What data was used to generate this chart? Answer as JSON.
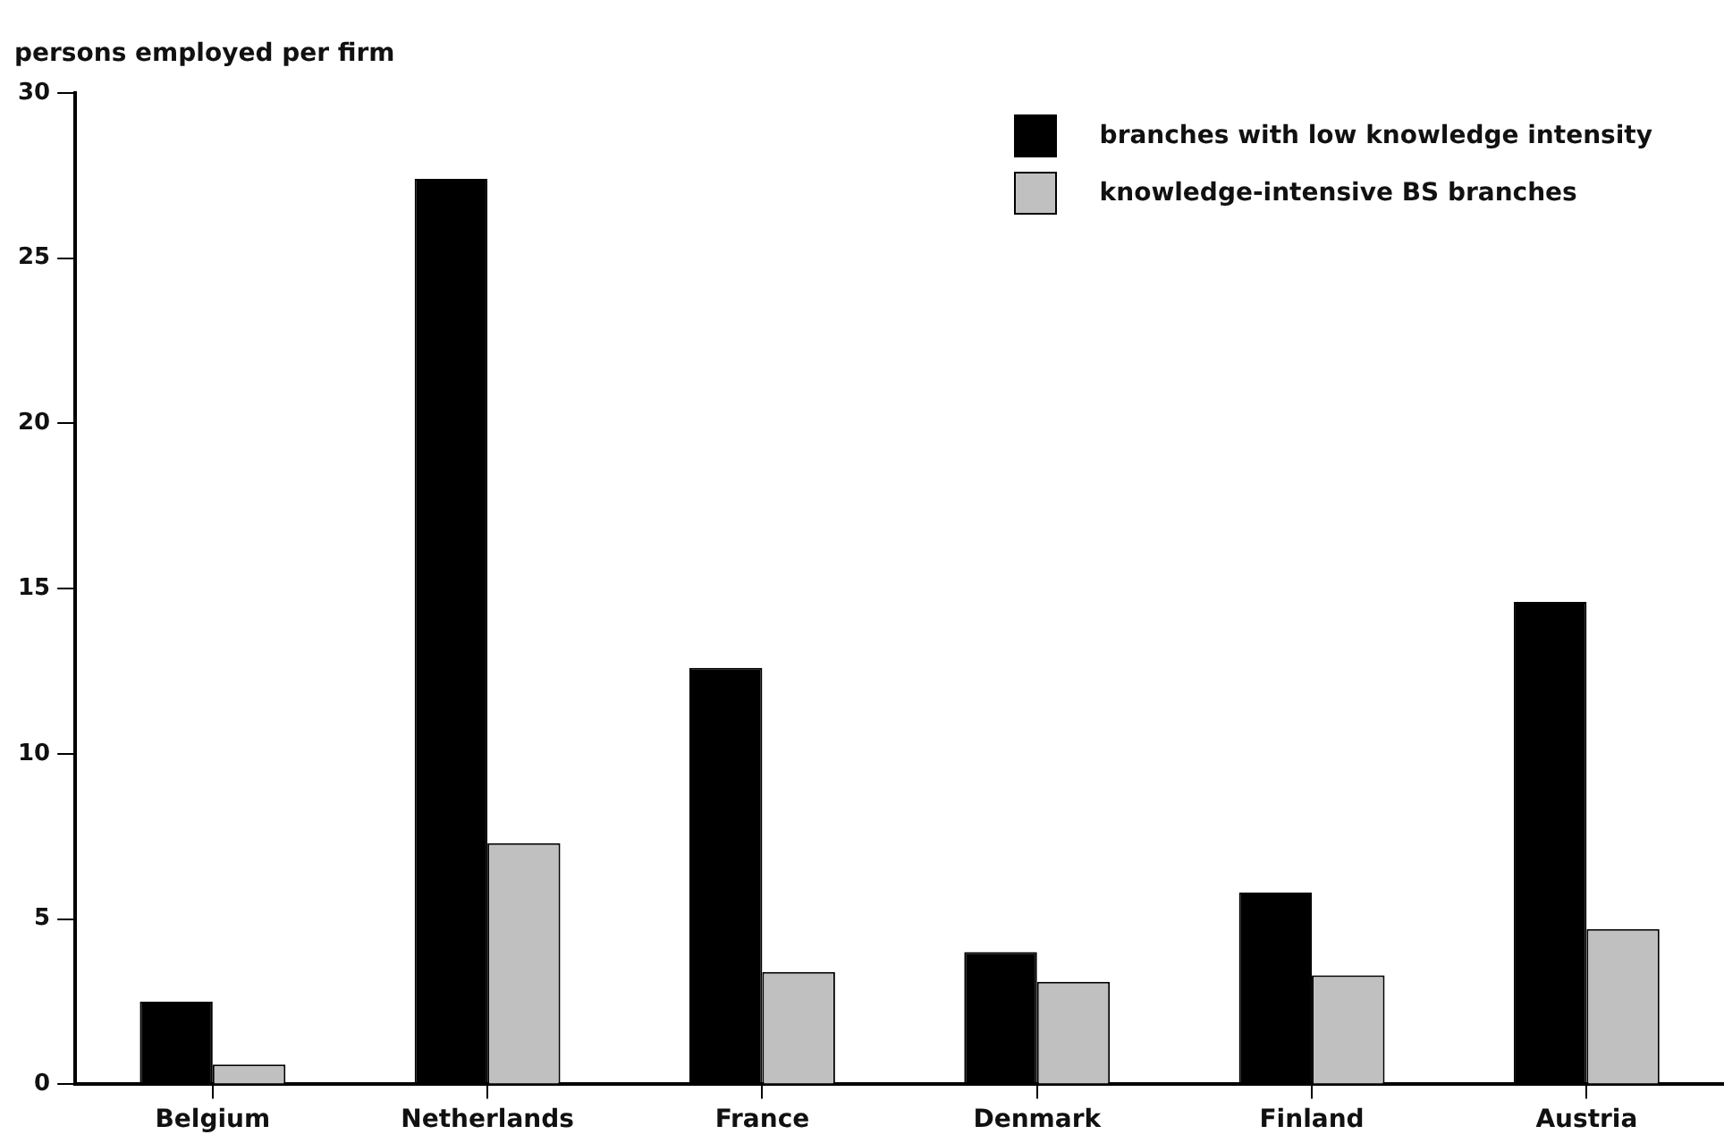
{
  "chart_data": {
    "type": "bar",
    "ylabel": "persons employed per firm",
    "categories": [
      "Belgium",
      "Netherlands",
      "France",
      "Denmark",
      "Finland",
      "Austria"
    ],
    "series": [
      {
        "name": "branches with low knowledge intensity",
        "color": "#000000",
        "values": [
          2.5,
          27.4,
          12.6,
          4.0,
          5.8,
          14.6
        ]
      },
      {
        "name": "knowledge-intensive BS branches",
        "color": "#c0c0c0",
        "values": [
          0.6,
          7.3,
          3.4,
          3.1,
          3.3,
          4.7
        ]
      }
    ],
    "ylim": [
      0,
      30
    ],
    "yticks": [
      0,
      5,
      10,
      15,
      20,
      25,
      30
    ],
    "grid": false,
    "legend": "top right"
  }
}
